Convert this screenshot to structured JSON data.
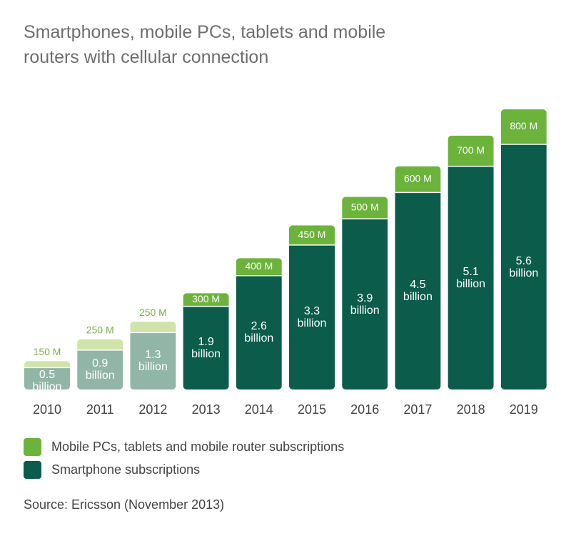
{
  "chart_data": {
    "type": "stacked-bar",
    "title": "Smartphones, mobile PCs, tablets and mobile routers with cellular connection",
    "categories": [
      "2010",
      "2011",
      "2012",
      "2013",
      "2014",
      "2015",
      "2016",
      "2017",
      "2018",
      "2019"
    ],
    "series": [
      {
        "name": "Smartphone subscriptions",
        "color": "#0b5c4b",
        "point_colors": [
          "#91b5a6",
          "#91b5a6",
          "#91b5a6",
          "#0b5c4b",
          "#0b5c4b",
          "#0b5c4b",
          "#0b5c4b",
          "#0b5c4b",
          "#0b5c4b",
          "#0b5c4b"
        ],
        "values": [
          0.5,
          0.9,
          1.3,
          1.9,
          2.6,
          3.3,
          3.9,
          4.5,
          5.1,
          5.6
        ],
        "value_labels": [
          "0.5 billion",
          "0.9 billion",
          "1.3 billion",
          "1.9 billion",
          "2.6 billion",
          "3.3 billion",
          "3.9 billion",
          "4.5 billion",
          "5.1 billion",
          "5.6 billion"
        ]
      },
      {
        "name": "Mobile PCs, tablets and mobile router subscriptions",
        "color": "#6cb33b",
        "point_colors": [
          "#d0e3aa",
          "#d0e3aa",
          "#d0e3aa",
          "#6cb33b",
          "#6cb33b",
          "#6cb33b",
          "#6cb33b",
          "#6cb33b",
          "#6cb33b",
          "#6cb33b"
        ],
        "values": [
          0.15,
          0.25,
          0.25,
          0.3,
          0.4,
          0.45,
          0.5,
          0.6,
          0.7,
          0.8
        ],
        "value_labels": [
          "150 M",
          "250 M",
          "250 M",
          "300 M",
          "400 M",
          "450 M",
          "500 M",
          "600 M",
          "700 M",
          "800 M"
        ]
      }
    ],
    "source": "Source: Ericsson (November 2013)"
  }
}
